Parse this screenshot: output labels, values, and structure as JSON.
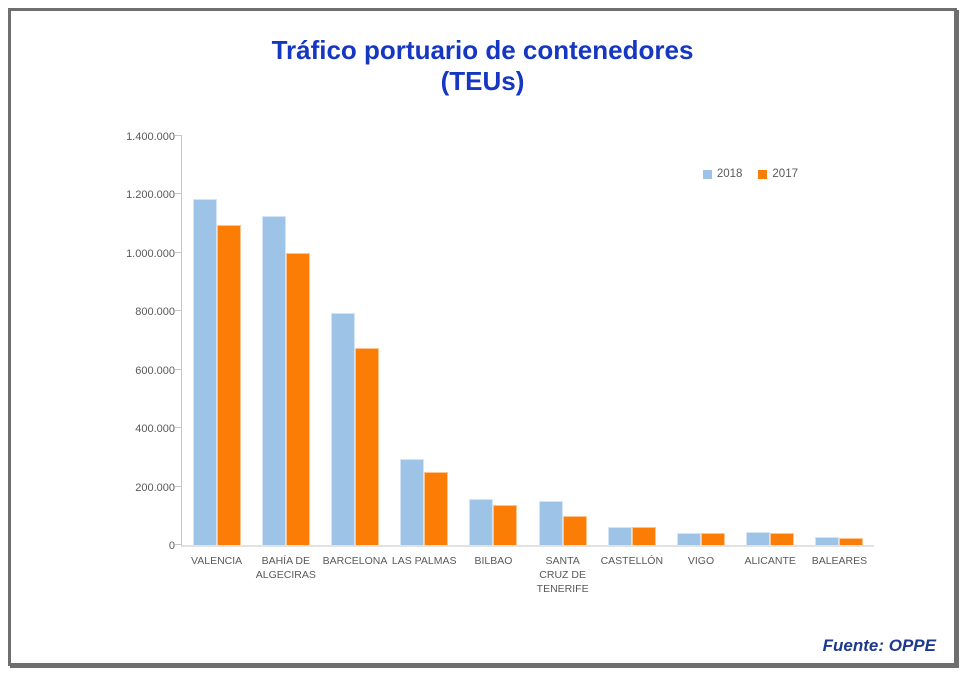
{
  "title": {
    "line1": "Tráfico portuario de contenedores",
    "line2": "(TEUs)"
  },
  "source": "Fuente: OPPE",
  "legend": {
    "items": [
      {
        "label": "2018",
        "color": "#9DC3E6"
      },
      {
        "label": "2017",
        "color": "#FC7D05"
      }
    ]
  },
  "colors": {
    "title": "#1637C1",
    "axis_line": "#C6C6C6",
    "tick_label": "#595959",
    "source_text": "#1E3A8C",
    "frame_border": "#6F6F6F",
    "series_2018": "#9DC3E6",
    "series_2017": "#FC7D05"
  },
  "chart_data": {
    "type": "bar",
    "title": "Tráfico portuario de contenedores (TEUs)",
    "xlabel": "",
    "ylabel": "",
    "categories": [
      "VALENCIA",
      "BAHÍA DE ALGECIRAS",
      "BARCELONA",
      "LAS PALMAS",
      "BILBAO",
      "SANTA CRUZ DE TENERIFE",
      "CASTELLÓN",
      "VIGO",
      "ALICANTE",
      "BALEARES"
    ],
    "series": [
      {
        "name": "2018",
        "color": "#9DC3E6",
        "values": [
          1185000,
          1125000,
          795000,
          293000,
          156000,
          151000,
          60000,
          42000,
          43000,
          27000
        ]
      },
      {
        "name": "2017",
        "color": "#FC7D05",
        "values": [
          1095000,
          1000000,
          675000,
          249000,
          136000,
          98000,
          61000,
          42000,
          42000,
          25000
        ]
      }
    ],
    "ylim": [
      0,
      1400000
    ],
    "ytick_step": 200000,
    "ytick_labels": [
      "0",
      "200.000",
      "400.000",
      "600.000",
      "800.000",
      "1.000.000",
      "1.200.000",
      "1.400.000"
    ],
    "grid": false,
    "legend_position": "top-right"
  }
}
